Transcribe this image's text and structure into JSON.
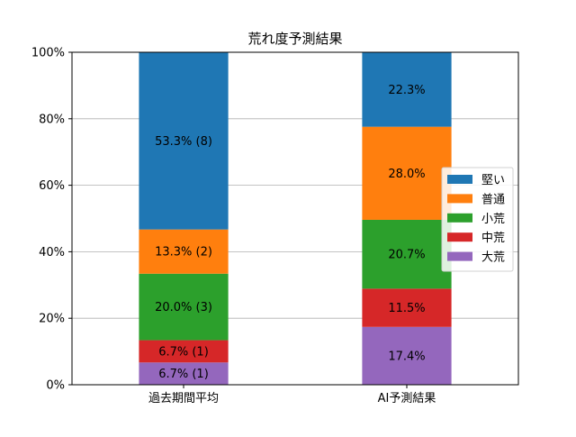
{
  "chart_data": {
    "type": "bar",
    "stacked": true,
    "title": "荒れ度予測結果",
    "xlabel": "",
    "ylabel": "",
    "categories": [
      "過去期間平均",
      "AI予測結果"
    ],
    "ylim": [
      0,
      100
    ],
    "yticks": [
      "0%",
      "20%",
      "40%",
      "60%",
      "80%",
      "100%"
    ],
    "grid": "horizontal",
    "legend_position": "right",
    "series": [
      {
        "name": "大荒",
        "color": "#9467bd",
        "values": [
          6.7,
          17.4
        ],
        "labels": [
          "6.7% (1)",
          "17.4%"
        ]
      },
      {
        "name": "中荒",
        "color": "#d62728",
        "values": [
          6.7,
          11.5
        ],
        "labels": [
          "6.7% (1)",
          "11.5%"
        ]
      },
      {
        "name": "小荒",
        "color": "#2ca02c",
        "values": [
          20.0,
          20.7
        ],
        "labels": [
          "20.0% (3)",
          "20.7%"
        ]
      },
      {
        "name": "普通",
        "color": "#ff7f0e",
        "values": [
          13.3,
          28.0
        ],
        "labels": [
          "13.3% (2)",
          "28.0%"
        ]
      },
      {
        "name": "堅い",
        "color": "#1f77b4",
        "values": [
          53.3,
          22.3
        ],
        "labels": [
          "53.3% (8)",
          "22.3%"
        ]
      }
    ],
    "legend_order": [
      "堅い",
      "普通",
      "小荒",
      "中荒",
      "大荒"
    ]
  }
}
